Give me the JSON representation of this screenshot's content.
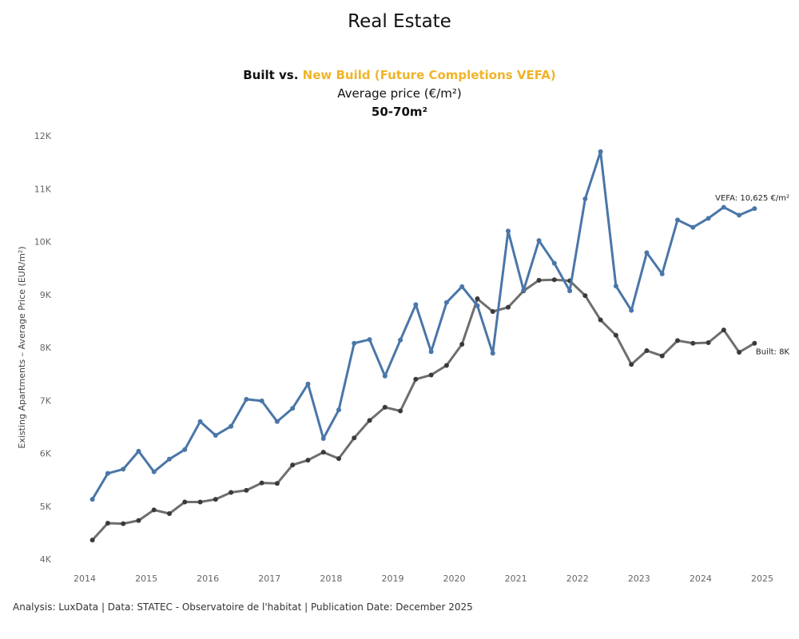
{
  "header": {
    "title": "Real Estate",
    "subtitle_part1": "Built vs. ",
    "subtitle_part2": "New Build (Future Completions VEFA)",
    "subtitle_line2": "Average price (€/m²)",
    "subtitle_line3": "50-70m²"
  },
  "footer": {
    "text": "Analysis: LuxData | Data: STATEC - Observatoire de l'habitat | Publication Date: December 2025"
  },
  "colors": {
    "vefa": "#4a76a8",
    "built": "#6e6e6e",
    "built_marker": "#3a3a3a",
    "accent": "#f0b429"
  },
  "chart_data": {
    "type": "line",
    "ylabel": "Existing Apartments – Average Price (EUR/m²)",
    "xlim": [
      2014,
      2025
    ],
    "ylim": [
      4000,
      12000
    ],
    "x_ticks": [
      "2014",
      "2015",
      "2016",
      "2017",
      "2018",
      "2019",
      "2020",
      "2021",
      "2022",
      "2023",
      "2024",
      "2025"
    ],
    "y_ticks": [
      "4K",
      "5K",
      "6K",
      "7K",
      "8K",
      "9K",
      "10K",
      "11K",
      "12K"
    ],
    "x": [
      2014.125,
      2014.375,
      2014.625,
      2014.875,
      2015.125,
      2015.375,
      2015.625,
      2015.875,
      2016.125,
      2016.375,
      2016.625,
      2016.875,
      2017.125,
      2017.375,
      2017.625,
      2017.875,
      2018.125,
      2018.375,
      2018.625,
      2018.875,
      2019.125,
      2019.375,
      2019.625,
      2019.875,
      2020.125,
      2020.375,
      2020.625,
      2020.875,
      2021.125,
      2021.375,
      2021.625,
      2021.875,
      2022.125,
      2022.375,
      2022.625,
      2022.875,
      2023.125,
      2023.375,
      2023.625,
      2023.875,
      2024.125,
      2024.375,
      2024.625,
      2024.875
    ],
    "series": [
      {
        "name": "VEFA",
        "values": [
          5130,
          5620,
          5700,
          6040,
          5650,
          5890,
          6070,
          6600,
          6340,
          6510,
          7020,
          6990,
          6600,
          6850,
          7310,
          6280,
          6820,
          8080,
          8150,
          7460,
          8140,
          8810,
          7920,
          8850,
          9150,
          8790,
          7890,
          10200,
          9080,
          10020,
          9590,
          9070,
          10810,
          11700,
          9160,
          8700,
          9790,
          9390,
          10410,
          10270,
          10440,
          10650,
          10500,
          10625
        ],
        "end_label": "VEFA: 10,625 €/m²"
      },
      {
        "name": "Built",
        "values": [
          4360,
          4680,
          4670,
          4730,
          4930,
          4860,
          5080,
          5080,
          5130,
          5260,
          5300,
          5440,
          5430,
          5780,
          5870,
          6020,
          5900,
          6290,
          6620,
          6870,
          6800,
          7400,
          7480,
          7660,
          8060,
          8920,
          8680,
          8760,
          9070,
          9270,
          9280,
          9260,
          8980,
          8520,
          8230,
          7680,
          7940,
          7840,
          8130,
          8080,
          8090,
          8330,
          7910,
          8080
        ],
        "end_label": "Built: 8K"
      }
    ]
  }
}
